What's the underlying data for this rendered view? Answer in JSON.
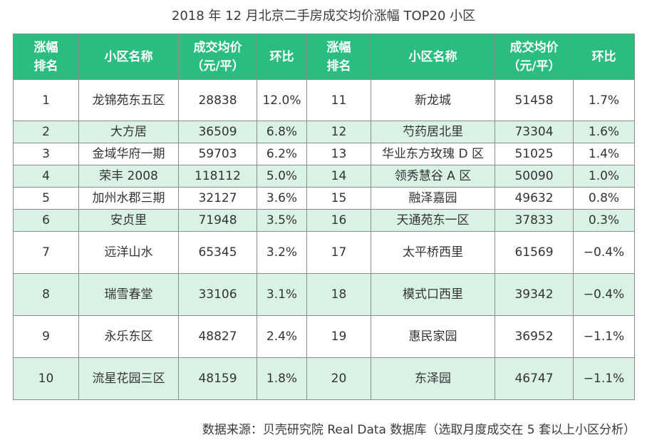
{
  "title": "2018 年 12 月北京二手房成交均价涨幅 TOP20 小区",
  "headers": [
    "涨幅\n排名",
    "小区名称",
    "成交均价\n（元/平）",
    "环比",
    "涨幅\n排名",
    "小区名称",
    "成交均价\n（元/平）",
    "环比"
  ],
  "rows": [
    {
      "l_rank": "1",
      "l_name": "龙锦苑东五区",
      "l_price": "28838",
      "l_mom": "12.0%",
      "r_rank": "11",
      "r_name": "新龙城",
      "r_price": "51458",
      "r_mom": "1.7%"
    },
    {
      "l_rank": "2",
      "l_name": "大方居",
      "l_price": "36509",
      "l_mom": "6.8%",
      "r_rank": "12",
      "r_name": "芍药居北里",
      "r_price": "73304",
      "r_mom": "1.6%"
    },
    {
      "l_rank": "3",
      "l_name": "金域华府一期",
      "l_price": "59703",
      "l_mom": "6.2%",
      "r_rank": "13",
      "r_name": "华业东方玫瑰 D 区",
      "r_price": "51025",
      "r_mom": "1.4%"
    },
    {
      "l_rank": "4",
      "l_name": "荣丰 2008",
      "l_price": "118112",
      "l_mom": "5.0%",
      "r_rank": "14",
      "r_name": "领秀慧谷 A 区",
      "r_price": "50090",
      "r_mom": "1.0%"
    },
    {
      "l_rank": "5",
      "l_name": "加州水郡三期",
      "l_price": "32127",
      "l_mom": "3.6%",
      "r_rank": "15",
      "r_name": "融泽嘉园",
      "r_price": "49632",
      "r_mom": "0.8%"
    },
    {
      "l_rank": "6",
      "l_name": "安贞里",
      "l_price": "71948",
      "l_mom": "3.5%",
      "r_rank": "16",
      "r_name": "天通苑东一区",
      "r_price": "37833",
      "r_mom": "0.3%"
    },
    {
      "l_rank": "7",
      "l_name": "远洋山水",
      "l_price": "65345",
      "l_mom": "3.2%",
      "r_rank": "17",
      "r_name": "太平桥西里",
      "r_price": "61569",
      "r_mom": "−0.4%"
    },
    {
      "l_rank": "8",
      "l_name": "瑞雪春堂",
      "l_price": "33106",
      "l_mom": "3.1%",
      "r_rank": "18",
      "r_name": "模式口西里",
      "r_price": "39342",
      "r_mom": "−0.4%"
    },
    {
      "l_rank": "9",
      "l_name": "永乐东区",
      "l_price": "48827",
      "l_mom": "2.4%",
      "r_rank": "19",
      "r_name": "惠民家园",
      "r_price": "36952",
      "r_mom": "−1.1%"
    },
    {
      "l_rank": "10",
      "l_name": "流星花园三区",
      "l_price": "48159",
      "l_mom": "1.8%",
      "r_rank": "20",
      "r_name": "东泽园",
      "r_price": "46747",
      "r_mom": "−1.1%"
    }
  ],
  "source_note": "数据来源：贝壳研究院 Real Data 数据库（选取月度成交在 5 套以上小区分析）",
  "colors": {
    "header_bg": "#2bbd80",
    "shade_bg": "#daf2e6",
    "border": "#8c8c8c"
  },
  "chart_data": {
    "type": "table",
    "title": "2018 年 12 月北京二手房成交均价涨幅 TOP20 小区",
    "columns": [
      "涨幅排名",
      "小区名称",
      "成交均价（元/平）",
      "环比"
    ],
    "records": [
      [
        1,
        "龙锦苑东五区",
        28838,
        "12.0%"
      ],
      [
        2,
        "大方居",
        36509,
        "6.8%"
      ],
      [
        3,
        "金域华府一期",
        59703,
        "6.2%"
      ],
      [
        4,
        "荣丰 2008",
        118112,
        "5.0%"
      ],
      [
        5,
        "加州水郡三期",
        32127,
        "3.6%"
      ],
      [
        6,
        "安贞里",
        71948,
        "3.5%"
      ],
      [
        7,
        "远洋山水",
        65345,
        "3.2%"
      ],
      [
        8,
        "瑞雪春堂",
        33106,
        "3.1%"
      ],
      [
        9,
        "永乐东区",
        48827,
        "2.4%"
      ],
      [
        10,
        "流星花园三区",
        48159,
        "1.8%"
      ],
      [
        11,
        "新龙城",
        51458,
        "1.7%"
      ],
      [
        12,
        "芍药居北里",
        73304,
        "1.6%"
      ],
      [
        13,
        "华业东方玫瑰 D 区",
        51025,
        "1.4%"
      ],
      [
        14,
        "领秀慧谷 A 区",
        50090,
        "1.0%"
      ],
      [
        15,
        "融泽嘉园",
        49632,
        "0.8%"
      ],
      [
        16,
        "天通苑东一区",
        37833,
        "0.3%"
      ],
      [
        17,
        "太平桥西里",
        61569,
        "−0.4%"
      ],
      [
        18,
        "模式口西里",
        39342,
        "−0.4%"
      ],
      [
        19,
        "惠民家园",
        36952,
        "−1.1%"
      ],
      [
        20,
        "东泽园",
        46747,
        "−1.1%"
      ]
    ]
  }
}
